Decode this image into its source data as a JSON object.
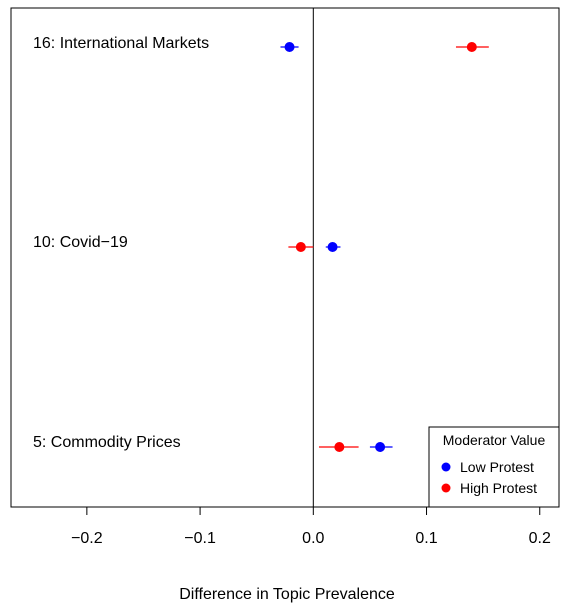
{
  "chart_data": {
    "type": "scatter",
    "subtype": "dot-and-whisker",
    "title": "",
    "xlabel": "Difference in Topic Prevalence",
    "ylabel": "",
    "xlim": [
      -0.267,
      0.217
    ],
    "xticks": [
      -0.2,
      -0.1,
      0.0,
      0.1,
      0.2
    ],
    "xtick_labels": [
      "−0.2",
      "−0.1",
      "0.0",
      "0.1",
      "0.2"
    ],
    "reference_line_x": 0,
    "categories": [
      "16: International Markets",
      "10: Covid−19",
      "5: Commodity Prices"
    ],
    "series": [
      {
        "name": "Low Protest",
        "color": "#0000ff",
        "points": [
          {
            "category": "16: International Markets",
            "estimate": -0.021,
            "ci": [
              -0.029,
              -0.013
            ]
          },
          {
            "category": "10: Covid−19",
            "estimate": 0.017,
            "ci": [
              0.011,
              0.024
            ]
          },
          {
            "category": "5: Commodity Prices",
            "estimate": 0.059,
            "ci": [
              0.05,
              0.07
            ]
          }
        ]
      },
      {
        "name": "High Protest",
        "color": "#ff0000",
        "points": [
          {
            "category": "16: International Markets",
            "estimate": 0.14,
            "ci": [
              0.126,
              0.155
            ]
          },
          {
            "category": "10: Covid−19",
            "estimate": -0.011,
            "ci": [
              -0.022,
              0.0
            ]
          },
          {
            "category": "5: Commodity Prices",
            "estimate": 0.023,
            "ci": [
              0.005,
              0.04
            ]
          }
        ]
      }
    ],
    "legend": {
      "title": "Moderator Value",
      "entries": [
        "Low Protest",
        "High Protest"
      ],
      "position": "bottom-right"
    },
    "grid": false
  }
}
